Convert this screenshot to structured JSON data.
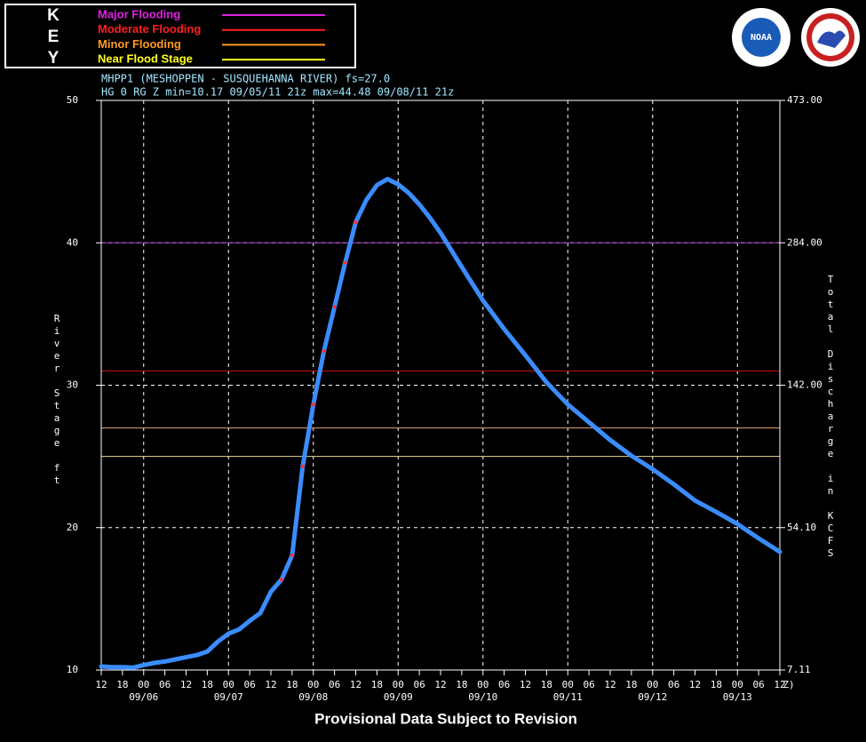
{
  "chart_data": {
    "type": "line",
    "key": {
      "letters": [
        "K",
        "E",
        "Y"
      ]
    },
    "flood_stages": [
      {
        "name": "Major Flooding",
        "value": 40,
        "color": "#e020e0",
        "line_color": "#a040c0"
      },
      {
        "name": "Moderate Flooding",
        "value": 31,
        "color": "#ff2020",
        "line_color": "#c01010"
      },
      {
        "name": "Minor Flooding",
        "value": 27,
        "color": "#ff9a20",
        "line_color": "#e8a070"
      },
      {
        "name": "Near Flood Stage",
        "value": 25,
        "color": "#ffff20",
        "line_color": "#e8d890"
      }
    ],
    "title": "MHPP1 (MESHOPPEN - SUSQUEHANNA RIVER) fs=27.0",
    "subtitle": "HG 0 RG Z min=10.17 09/05/11 21z max=44.48 09/08/11 21z",
    "y_label": "River Stage ft",
    "y2_label": "Total Discharge in KCFS",
    "footer": "Provisional Data Subject to Revision",
    "logos": [
      "NOAA"
    ],
    "x_unit_label": "Z)",
    "xlim": [
      "09/05 12",
      "09/13 12"
    ],
    "ylim": [
      10,
      50
    ],
    "yticks": [
      10,
      20,
      30,
      40,
      50
    ],
    "grid": true,
    "y2ticks": [
      {
        "value": 7.11,
        "label": "7.11",
        "stage": 10
      },
      {
        "value": 54.1,
        "label": "54.10",
        "stage": 20
      },
      {
        "value": 142,
        "label": "142.00",
        "stage": 30
      },
      {
        "value": 284,
        "label": "284.00",
        "stage": 40
      },
      {
        "value": 473,
        "label": "473.00",
        "stage": 50
      }
    ],
    "xticks": [
      {
        "value": "09/05 12",
        "label": "12"
      },
      {
        "value": "09/05 18",
        "label": "18"
      },
      {
        "value": "09/06 00",
        "label": "00"
      },
      {
        "value": "09/06 06",
        "label": "06"
      },
      {
        "value": "09/06 12",
        "label": "12"
      },
      {
        "value": "09/06 18",
        "label": "18"
      },
      {
        "value": "09/07 00",
        "label": "00"
      },
      {
        "value": "09/07 06",
        "label": "06"
      },
      {
        "value": "09/07 12",
        "label": "12"
      },
      {
        "value": "09/07 18",
        "label": "18"
      },
      {
        "value": "09/08 00",
        "label": "00"
      },
      {
        "value": "09/08 06",
        "label": "06"
      },
      {
        "value": "09/08 12",
        "label": "12"
      },
      {
        "value": "09/08 18",
        "label": "18"
      },
      {
        "value": "09/09 00",
        "label": "00"
      },
      {
        "value": "09/09 06",
        "label": "06"
      },
      {
        "value": "09/09 12",
        "label": "12"
      },
      {
        "value": "09/09 18",
        "label": "18"
      },
      {
        "value": "09/10 00",
        "label": "00"
      },
      {
        "value": "09/10 06",
        "label": "06"
      },
      {
        "value": "09/10 12",
        "label": "12"
      },
      {
        "value": "09/10 18",
        "label": "18"
      },
      {
        "value": "09/11 00",
        "label": "00"
      },
      {
        "value": "09/11 06",
        "label": "06"
      },
      {
        "value": "09/11 12",
        "label": "12"
      },
      {
        "value": "09/11 18",
        "label": "18"
      },
      {
        "value": "09/12 00",
        "label": "00"
      },
      {
        "value": "09/12 06",
        "label": "06"
      },
      {
        "value": "09/12 12",
        "label": "12"
      },
      {
        "value": "09/12 18",
        "label": "18"
      },
      {
        "value": "09/13 00",
        "label": "00"
      },
      {
        "value": "09/13 06",
        "label": "06"
      },
      {
        "value": "09/13 12",
        "label": "12"
      }
    ],
    "xdates": [
      {
        "value": "09/06 00",
        "label": "09/06"
      },
      {
        "value": "09/07 00",
        "label": "09/07"
      },
      {
        "value": "09/08 00",
        "label": "09/08"
      },
      {
        "value": "09/09 00",
        "label": "09/09"
      },
      {
        "value": "09/10 00",
        "label": "09/10"
      },
      {
        "value": "09/11 00",
        "label": "09/11"
      },
      {
        "value": "09/12 00",
        "label": "09/12"
      },
      {
        "value": "09/13 00",
        "label": "09/13"
      }
    ],
    "x": [
      "09/05 12",
      "09/05 15",
      "09/05 18",
      "09/05 21",
      "09/06 00",
      "09/06 03",
      "09/06 06",
      "09/06 09",
      "09/06 12",
      "09/06 15",
      "09/06 18",
      "09/06 21",
      "09/07 00",
      "09/07 03",
      "09/07 06",
      "09/07 09",
      "09/07 12",
      "09/07 15",
      "09/07 18",
      "09/07 21",
      "09/08 00",
      "09/08 03",
      "09/08 06",
      "09/08 09",
      "09/08 12",
      "09/08 15",
      "09/08 18",
      "09/08 21",
      "09/09 00",
      "09/09 03",
      "09/09 06",
      "09/09 09",
      "09/09 12",
      "09/09 18",
      "09/10 00",
      "09/10 06",
      "09/10 12",
      "09/10 18",
      "09/11 00",
      "09/11 06",
      "09/11 12",
      "09/11 18",
      "09/12 00",
      "09/12 06",
      "09/12 12",
      "09/12 18",
      "09/13 00",
      "09/13 06",
      "09/13 12"
    ],
    "series": [
      {
        "color": "#3a8cff",
        "values": [
          10.25,
          10.2,
          10.2,
          10.17,
          10.35,
          10.5,
          10.6,
          10.75,
          10.9,
          11.05,
          11.3,
          12.0,
          12.55,
          12.85,
          13.45,
          14.0,
          15.5,
          16.35,
          18.05,
          24.3,
          28.65,
          32.4,
          35.5,
          38.6,
          41.45,
          43.0,
          44.05,
          44.48,
          44.1,
          43.5,
          42.7,
          41.75,
          40.7,
          38.3,
          35.95,
          33.95,
          32.1,
          30.2,
          28.65,
          27.4,
          26.15,
          25.05,
          24.1,
          23.05,
          21.9,
          21.1,
          20.25,
          19.25,
          18.3
        ]
      },
      {
        "color": "#ff3030",
        "values": [
          null,
          null,
          null,
          null,
          null,
          null,
          null,
          null,
          null,
          null,
          null,
          null,
          null,
          null,
          null,
          null,
          null,
          16.35,
          18.05,
          24.3,
          28.65,
          32.4,
          35.5,
          38.6,
          41.45,
          null,
          null,
          null,
          null,
          null,
          null,
          null,
          null,
          null,
          null,
          null,
          null,
          null,
          null,
          null,
          null,
          null,
          null,
          null,
          null,
          null,
          null,
          null,
          null
        ]
      }
    ]
  }
}
